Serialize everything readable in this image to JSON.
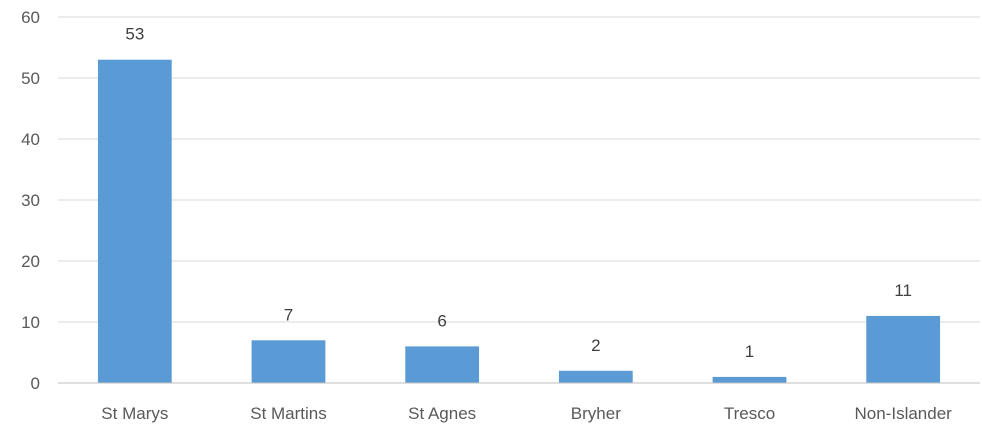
{
  "chart_data": {
    "type": "bar",
    "categories": [
      "St Marys",
      "St Martins",
      "St Agnes",
      "Bryher",
      "Tresco",
      "Non-Islander"
    ],
    "values": [
      53,
      7,
      6,
      2,
      1,
      11
    ],
    "data_labels": [
      "53",
      "7",
      "6",
      "2",
      "1",
      "11"
    ],
    "title": "",
    "xlabel": "",
    "ylabel": "",
    "ylim": [
      0,
      60
    ],
    "yticks": [
      0,
      10,
      20,
      30,
      40,
      50,
      60
    ],
    "ytick_labels": [
      "0",
      "10",
      "20",
      "30",
      "40",
      "50",
      "60"
    ],
    "grid": true,
    "legend": "none",
    "bar_color": "#5b9bd5"
  }
}
